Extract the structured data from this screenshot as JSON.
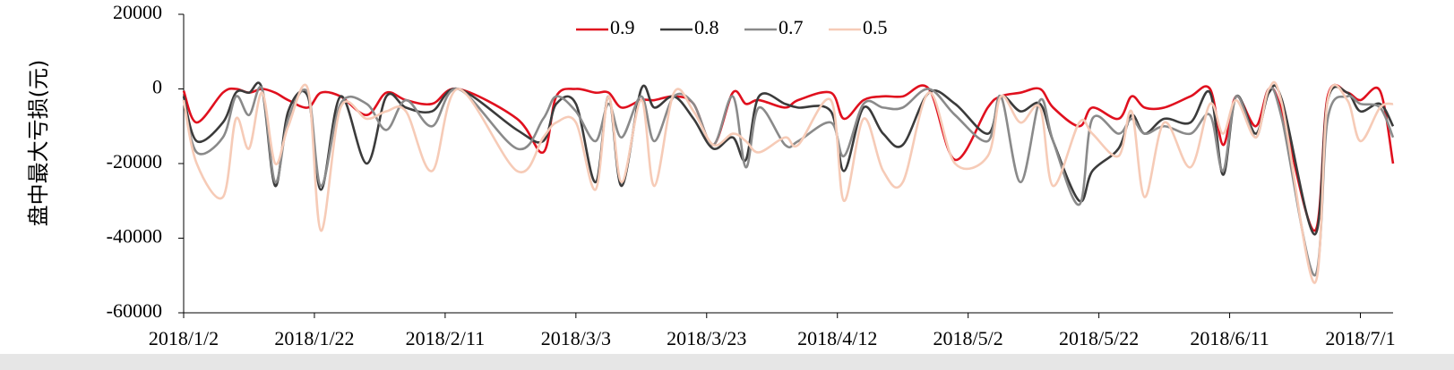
{
  "chart_data": {
    "type": "line",
    "ylabel": "盘中最大亏损(元)",
    "x": [
      "2018/1/2",
      "2018/1/4",
      "2018/1/8",
      "2018/1/10",
      "2018/1/12",
      "2018/1/14",
      "2018/1/16",
      "2018/1/18",
      "2018/1/21",
      "2018/1/23",
      "2018/1/26",
      "2018/1/30",
      "2018/2/2",
      "2018/2/5",
      "2018/2/9",
      "2018/2/13",
      "2018/2/22",
      "2018/2/26",
      "2018/2/28",
      "2018/3/3",
      "2018/3/6",
      "2018/3/8",
      "2018/3/10",
      "2018/3/13",
      "2018/3/15",
      "2018/3/18",
      "2018/3/21",
      "2018/3/24",
      "2018/3/27",
      "2018/3/29",
      "2018/3/31",
      "2018/4/4",
      "2018/4/6",
      "2018/4/11",
      "2018/4/13",
      "2018/4/16",
      "2018/4/19",
      "2018/4/22",
      "2018/4/26",
      "2018/4/30",
      "2018/5/5",
      "2018/5/7",
      "2018/5/10",
      "2018/5/13",
      "2018/5/15",
      "2018/5/19",
      "2018/5/21",
      "2018/5/25",
      "2018/5/27",
      "2018/5/29",
      "2018/6/1",
      "2018/6/5",
      "2018/6/8",
      "2018/6/10",
      "2018/6/12",
      "2018/6/15",
      "2018/6/17",
      "2018/6/19",
      "2018/6/24",
      "2018/6/26",
      "2018/6/29",
      "2018/7/1",
      "2018/7/4",
      "2018/7/6"
    ],
    "series": [
      {
        "name": "0.9",
        "color": "#e0101e",
        "values": [
          -500,
          -9000,
          -1000,
          0,
          -1000,
          0,
          -1000,
          -3000,
          -5000,
          -1000,
          -2000,
          -7000,
          -1000,
          -3000,
          -4000,
          0,
          -8000,
          -17000,
          -2000,
          0,
          -1000,
          -1000,
          -5000,
          -3000,
          -3000,
          -2000,
          -4000,
          -15000,
          -1000,
          -4000,
          -3000,
          -5000,
          -3000,
          -1000,
          -8000,
          -3000,
          -2000,
          -2000,
          0,
          -19000,
          -5000,
          -2000,
          -1000,
          0,
          -5000,
          -10000,
          -5000,
          -8000,
          -2000,
          -5000,
          -5000,
          -2000,
          0,
          -15000,
          -2000,
          -10000,
          0,
          -6000,
          -38000,
          -2000,
          -1000,
          -3000,
          -500,
          -20000
        ]
      },
      {
        "name": "0.8",
        "color": "#3b3b3b",
        "values": [
          -2000,
          -14000,
          -9000,
          -1000,
          -1000,
          0,
          -26000,
          -6000,
          -2000,
          -27000,
          -2000,
          -20000,
          -2000,
          -5000,
          -6000,
          0,
          -11000,
          -14000,
          -4000,
          -4000,
          -25000,
          -2000,
          -26000,
          0,
          -5000,
          -2000,
          -8000,
          -16000,
          -13000,
          -19000,
          -2000,
          -4000,
          -5000,
          -6000,
          -22000,
          -5000,
          -12000,
          -15000,
          -1000,
          -4000,
          -12000,
          -2000,
          -6000,
          -4000,
          -14000,
          -30000,
          -22000,
          -16000,
          -7000,
          -12000,
          -8000,
          -9000,
          -1000,
          -23000,
          -2000,
          -12000,
          -1000,
          -3000,
          -39000,
          -3000,
          -1000,
          -6000,
          -4000,
          -10000
        ]
      },
      {
        "name": "0.7",
        "color": "#8a8a8a",
        "values": [
          -3000,
          -17000,
          -13000,
          -2000,
          -7000,
          0,
          -25000,
          -8000,
          -1000,
          -26000,
          -4000,
          -4000,
          -11000,
          -3000,
          -10000,
          0,
          -16000,
          -8000,
          -2000,
          -6000,
          -14000,
          -4000,
          -13000,
          -2000,
          -14000,
          -2000,
          -4000,
          -15000,
          -2000,
          -21000,
          -5000,
          -15000,
          -14000,
          -9000,
          -18000,
          -4000,
          -5000,
          -5000,
          0,
          -7000,
          -14000,
          -2000,
          -25000,
          -3000,
          -14000,
          -31000,
          -8000,
          -12000,
          -8000,
          -12000,
          -10000,
          -12000,
          -7000,
          -22000,
          -2000,
          -13000,
          0,
          -8000,
          -50000,
          -8000,
          -2000,
          -4000,
          -5000,
          -13000
        ]
      },
      {
        "name": "0.5",
        "color": "#f6cbb7",
        "values": [
          -3000,
          -20000,
          -29000,
          -8000,
          -16000,
          -1000,
          -20000,
          -10000,
          0,
          -38000,
          -5000,
          -8000,
          -6000,
          -6000,
          -22000,
          0,
          -22000,
          -13000,
          -9000,
          -9000,
          -27000,
          -2000,
          -25000,
          -3000,
          -26000,
          -1000,
          -6000,
          -15000,
          -12000,
          -14000,
          -17000,
          -13000,
          -15000,
          -3000,
          -30000,
          -8000,
          -22000,
          -25000,
          -1000,
          -20000,
          -18000,
          -2000,
          -9000,
          -5000,
          -26000,
          -9000,
          -12000,
          -18000,
          -6000,
          -29000,
          -9000,
          -21000,
          -4000,
          -12000,
          -3000,
          -13000,
          0,
          -4000,
          -52000,
          -3000,
          -3000,
          -14000,
          -5000,
          -4000
        ]
      }
    ],
    "xlim": [
      "2018/1/2",
      "2018/7/6"
    ],
    "xticks": [
      "2018/1/2",
      "2018/1/22",
      "2018/2/11",
      "2018/3/3",
      "2018/3/23",
      "2018/4/12",
      "2018/5/2",
      "2018/5/22",
      "2018/6/11",
      "2018/7/1"
    ],
    "ylim": [
      -60000,
      20000
    ],
    "yticks": [
      -60000,
      -40000,
      -20000,
      0,
      20000
    ],
    "legend": "top"
  }
}
